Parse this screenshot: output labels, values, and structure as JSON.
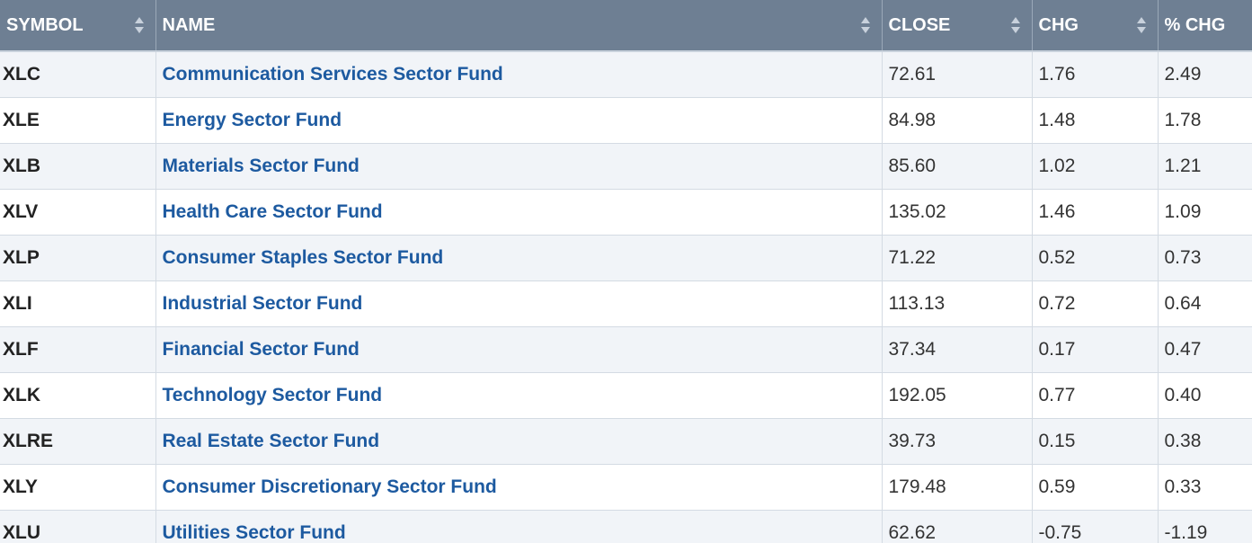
{
  "headers": {
    "symbol": "SYMBOL",
    "name": "NAME",
    "close": "CLOSE",
    "chg": "CHG",
    "pct_chg": "% CHG"
  },
  "rows": [
    {
      "symbol": "XLC",
      "name": "Communication Services Sector Fund",
      "close": "72.61",
      "chg": "1.76",
      "pct_chg": "2.49"
    },
    {
      "symbol": "XLE",
      "name": "Energy Sector Fund",
      "close": "84.98",
      "chg": "1.48",
      "pct_chg": "1.78"
    },
    {
      "symbol": "XLB",
      "name": "Materials Sector Fund",
      "close": "85.60",
      "chg": "1.02",
      "pct_chg": "1.21"
    },
    {
      "symbol": "XLV",
      "name": "Health Care Sector Fund",
      "close": "135.02",
      "chg": "1.46",
      "pct_chg": "1.09"
    },
    {
      "symbol": "XLP",
      "name": "Consumer Staples Sector Fund",
      "close": "71.22",
      "chg": "0.52",
      "pct_chg": "0.73"
    },
    {
      "symbol": "XLI",
      "name": "Industrial Sector Fund",
      "close": "113.13",
      "chg": "0.72",
      "pct_chg": "0.64"
    },
    {
      "symbol": "XLF",
      "name": "Financial Sector Fund",
      "close": "37.34",
      "chg": "0.17",
      "pct_chg": "0.47"
    },
    {
      "symbol": "XLK",
      "name": "Technology Sector Fund",
      "close": "192.05",
      "chg": "0.77",
      "pct_chg": "0.40"
    },
    {
      "symbol": "XLRE",
      "name": "Real Estate Sector Fund",
      "close": "39.73",
      "chg": "0.15",
      "pct_chg": "0.38"
    },
    {
      "symbol": "XLY",
      "name": "Consumer Discretionary Sector Fund",
      "close": "179.48",
      "chg": "0.59",
      "pct_chg": "0.33"
    },
    {
      "symbol": "XLU",
      "name": "Utilities Sector Fund",
      "close": "62.62",
      "chg": "-0.75",
      "pct_chg": "-1.19"
    }
  ],
  "icons": {
    "sort": "sort-arrows-icon"
  },
  "colors": {
    "header_bg": "#6e7f93",
    "link": "#1d5aa0",
    "row_stripe": "#f1f4f8"
  }
}
